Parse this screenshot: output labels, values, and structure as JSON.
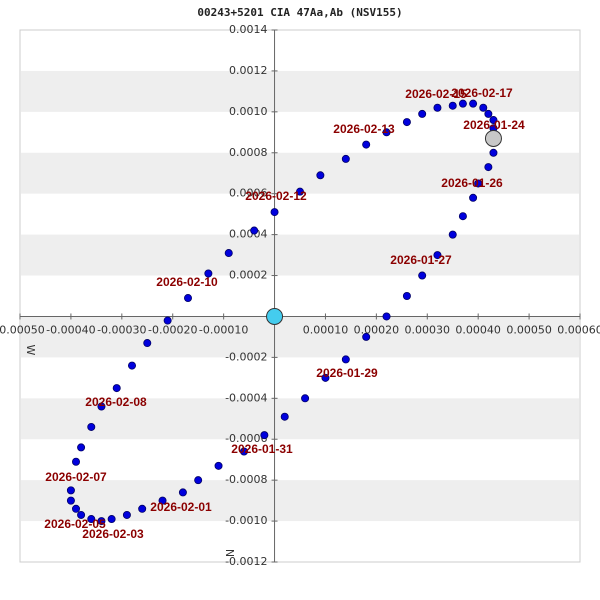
{
  "chart_data": {
    "type": "scatter",
    "title": "00243+5201 CIA  47Aa,Ab (NSV155)",
    "x_label": "W",
    "y_label": "N",
    "xlim": [
      -0.0005,
      0.0006
    ],
    "ylim": [
      -0.0012,
      0.0014
    ],
    "xticks": [
      {
        "value": -0.0005,
        "label": "-0.00050"
      },
      {
        "value": -0.0004,
        "label": "-0.00040"
      },
      {
        "value": -0.0003,
        "label": "-0.00030"
      },
      {
        "value": -0.0002,
        "label": "-0.00020"
      },
      {
        "value": -0.0001,
        "label": "-0.00010"
      },
      {
        "value": 0.0001,
        "label": "0.00010"
      },
      {
        "value": 0.0002,
        "label": "0.00020"
      },
      {
        "value": 0.0003,
        "label": "0.00030"
      },
      {
        "value": 0.0004,
        "label": "0.00040"
      },
      {
        "value": 0.0005,
        "label": "0.00050"
      },
      {
        "value": 0.0006,
        "label": "0.00060"
      }
    ],
    "yticks": [
      0.0014,
      0.0012,
      {
        "value": 0.001,
        "label": "0.0010"
      },
      0.0008,
      0.0006,
      0.0004,
      0.0002,
      -0.0002,
      -0.0004,
      -0.0006,
      -0.0008,
      {
        "value": -0.001,
        "label": "-0.0010"
      },
      -0.0012
    ],
    "color": "#0000dd",
    "x": [
      0.0,
      5e-05,
      9e-05,
      0.00014,
      0.00018,
      0.00022,
      0.00026,
      0.00029,
      0.00032,
      0.00035,
      0.00037,
      0.00039,
      0.00041,
      0.00042,
      0.00043,
      0.00043,
      0.00043,
      0.00042,
      0.0004,
      0.00039,
      0.00037,
      0.00035,
      0.00032,
      0.00029,
      0.00026,
      0.00022,
      0.00018,
      0.00014,
      0.0001,
      6e-05,
      2e-05,
      -2e-05,
      -6e-05,
      -0.00011,
      -0.00015,
      -0.00018,
      -0.00022,
      -0.00026,
      -0.00029,
      -0.00032,
      -0.00034,
      -0.00036,
      -0.00038,
      -0.00039,
      -0.0004,
      -0.0004,
      -0.00039,
      -0.00038,
      -0.00036,
      -0.00034,
      -0.00031,
      -0.00028,
      -0.00025,
      -0.00021,
      -0.00017,
      -0.00013,
      -9e-05,
      -4e-05
    ],
    "values": [
      0.00051,
      0.00061,
      0.00069,
      0.00077,
      0.00084,
      0.0009,
      0.00095,
      0.00099,
      0.00102,
      0.00103,
      0.00104,
      0.00104,
      0.00102,
      0.00099,
      0.00096,
      0.00092,
      0.0008,
      0.00073,
      0.00065,
      0.00058,
      0.00049,
      0.0004,
      0.0003,
      0.0002,
      0.0001,
      0.0,
      -0.0001,
      -0.00021,
      -0.0003,
      -0.0004,
      -0.00049,
      -0.00058,
      -0.00066,
      -0.00073,
      -0.0008,
      -0.00086,
      -0.0009,
      -0.00094,
      -0.00097,
      -0.00099,
      -0.001,
      -0.00099,
      -0.00097,
      -0.00094,
      -0.0009,
      -0.00085,
      -0.00071,
      -0.00064,
      -0.00054,
      -0.00044,
      -0.00035,
      -0.00024,
      -0.00013,
      -2e-05,
      9e-05,
      0.00021,
      0.00031,
      0.00042
    ],
    "markers": [
      {
        "x": 0.0,
        "y": 0.0,
        "color": "#44ccee"
      },
      {
        "x": 0.00043,
        "y": 0.00087,
        "color": "#c8c8c8"
      }
    ],
    "annotations": [
      "2026-02-15",
      "2026-02-17",
      "2026-01-24",
      "2026-02-13",
      "2026-01-26",
      "2026-02-12",
      "2026-01-27",
      "2026-02-10",
      "2026-01-29",
      "2026-02-08",
      "2026-01-31",
      "2026-02-07",
      "2026-02-01",
      "2026-02-05",
      "2026-02-03"
    ]
  }
}
